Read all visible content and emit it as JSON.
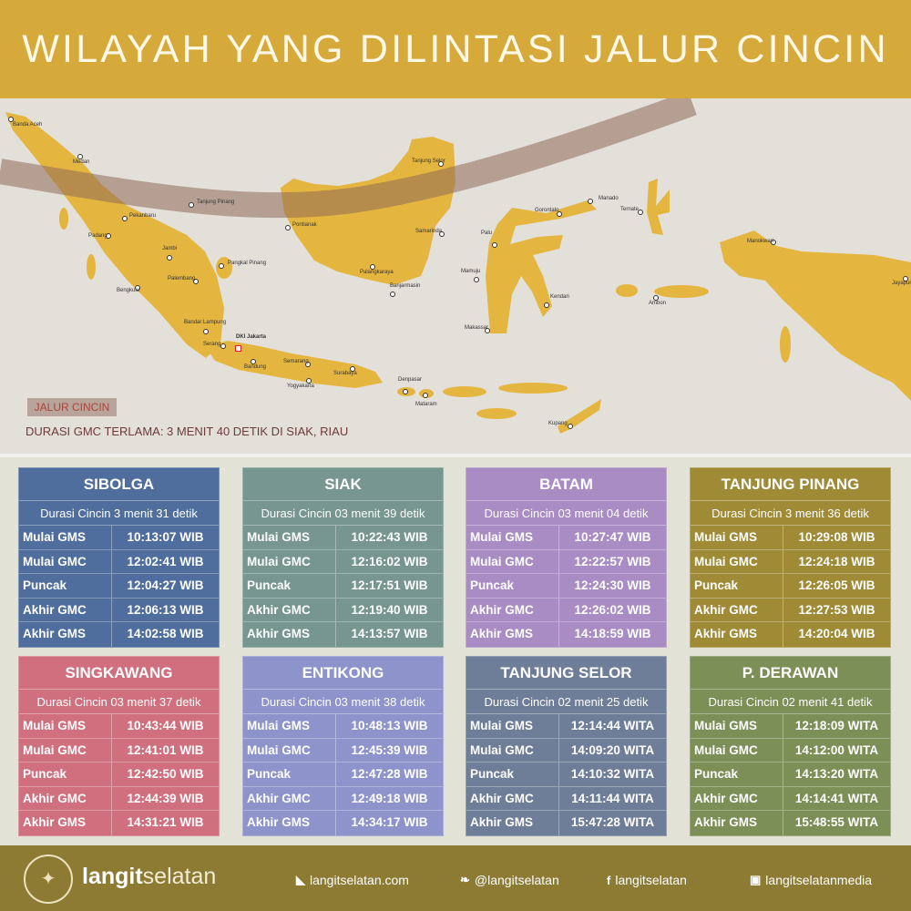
{
  "header": {
    "title": "WILAYAH YANG DILINTASI JALUR CINCIN"
  },
  "map": {
    "colors": {
      "land": "#E5B63F",
      "sea": "#E3DFD9",
      "path": "#8E6A58"
    },
    "legend_label": "JALUR CINCIN",
    "longest_duration": "DURASI GMC TERLAMA: 3 MENIT 40 DETIK DI SIAK, RIAU",
    "capital": "DKI Jakarta",
    "cities": [
      "Banda Aceh",
      "Medan",
      "Tanjung Pinang",
      "Pekanbaru",
      "Padang",
      "Jambi",
      "Pangkal Pinang",
      "Palembang",
      "Bengkulu",
      "Bandar Lampung",
      "Serang",
      "Bandung",
      "Semarang",
      "Yogyakarta",
      "Surabaya",
      "Denpasar",
      "Mataram",
      "Tanjung Selor",
      "Pontianak",
      "Samarinda",
      "Palangkaraya",
      "Banjarmasin",
      "Manado",
      "Gorontalo",
      "Ternate",
      "Palu",
      "Mamuju",
      "Kendari",
      "Makassar",
      "Ambon",
      "Manokwari",
      "Jayapura",
      "Kupang"
    ]
  },
  "locations": [
    {
      "name": "SIBOLGA",
      "duration": "Durasi Cincin 3 menit 31 detik",
      "color": "#4F6E9D",
      "rows": [
        [
          "Mulai GMS",
          "10:13:07 WIB"
        ],
        [
          "Mulai GMC",
          "12:02:41 WIB"
        ],
        [
          "Puncak",
          "12:04:27 WIB"
        ],
        [
          "Akhir GMC",
          "12:06:13  WIB"
        ],
        [
          "Akhir GMS",
          "14:02:58 WIB"
        ]
      ]
    },
    {
      "name": "SIAK",
      "duration": "Durasi Cincin 03 menit 39 detik",
      "color": "#76968F",
      "rows": [
        [
          "Mulai GMS",
          "10:22:43 WIB"
        ],
        [
          "Mulai GMC",
          "12:16:02 WIB"
        ],
        [
          "Puncak",
          "12:17:51 WIB"
        ],
        [
          "Akhir GMC",
          "12:19:40 WIB"
        ],
        [
          "Akhir GMS",
          "14:13:57 WIB"
        ]
      ]
    },
    {
      "name": "BATAM",
      "duration": "Durasi Cincin 03 menit 04 detik",
      "color": "#AA8CC5",
      "rows": [
        [
          "Mulai GMS",
          "10:27:47 WIB"
        ],
        [
          "Mulai GMC",
          "12:22:57 WIB"
        ],
        [
          "Puncak",
          "12:24:30 WIB"
        ],
        [
          "Akhir GMC",
          "12:26:02 WIB"
        ],
        [
          "Akhir GMS",
          "14:18:59 WIB"
        ]
      ]
    },
    {
      "name": "TANJUNG PINANG",
      "duration": "Durasi Cincin 3 menit 36 detik",
      "color": "#9F8A36",
      "rows": [
        [
          "Mulai GMS",
          "10:29:08 WIB"
        ],
        [
          "Mulai GMC",
          "12:24:18 WIB"
        ],
        [
          "Puncak",
          "12:26:05 WIB"
        ],
        [
          "Akhir GMC",
          "12:27:53 WIB"
        ],
        [
          "Akhir GMS",
          "14:20:04 WIB"
        ]
      ]
    },
    {
      "name": "SINGKAWANG",
      "duration": "Durasi Cincin 03 menit 37 detik",
      "color": "#D0707E",
      "rows": [
        [
          "Mulai GMS",
          "10:43:44 WIB"
        ],
        [
          "Mulai GMC",
          "12:41:01 WIB"
        ],
        [
          "Puncak",
          "12:42:50 WIB"
        ],
        [
          "Akhir GMC",
          "12:44:39 WIB"
        ],
        [
          "Akhir GMS",
          "14:31:21 WIB"
        ]
      ]
    },
    {
      "name": "ENTIKONG",
      "duration": "Durasi Cincin 03 menit 38 detik",
      "color": "#8E94CB",
      "rows": [
        [
          "Mulai GMS",
          "10:48:13 WIB"
        ],
        [
          "Mulai GMC",
          "12:45:39 WIB"
        ],
        [
          "Puncak",
          "12:47:28 WIB"
        ],
        [
          "Akhir GMC",
          "12:49:18 WIB"
        ],
        [
          "Akhir GMS",
          "14:34:17 WIB"
        ]
      ]
    },
    {
      "name": "TANJUNG SELOR",
      "duration": "Durasi Cincin 02 menit 25 detik",
      "color": "#6F7E98",
      "rows": [
        [
          "Mulai GMS",
          "12:14:44 WITA"
        ],
        [
          "Mulai GMC",
          "14:09:20 WITA"
        ],
        [
          "Puncak",
          "14:10:32 WITA"
        ],
        [
          "Akhir GMC",
          "14:11:44 WITA"
        ],
        [
          "Akhir GMS",
          "15:47:28 WITA"
        ]
      ]
    },
    {
      "name": "P. DERAWAN",
      "duration": "Durasi Cincin 02 menit 41 detik",
      "color": "#7C8F57",
      "rows": [
        [
          "Mulai GMS",
          "12:18:09 WITA"
        ],
        [
          "Mulai GMC",
          "14:12:00 WITA"
        ],
        [
          "Puncak",
          "14:13:20 WITA"
        ],
        [
          "Akhir GMC",
          "14:14:41 WITA"
        ],
        [
          "Akhir GMS",
          "15:48:55 WITA"
        ]
      ]
    }
  ],
  "footer": {
    "brand_bold": "langit",
    "brand_thin": "selatan",
    "logo_text": "LANGITSELATAN",
    "links": [
      {
        "icon": "rss-icon",
        "glyph": "◣",
        "label": "langitselatan.com"
      },
      {
        "icon": "twitter-icon",
        "glyph": "❧",
        "label": "@langitselatan"
      },
      {
        "icon": "facebook-icon",
        "glyph": "f",
        "label": "langitselatan"
      },
      {
        "icon": "instagram-icon",
        "glyph": "▣",
        "label": "langitselatanmedia"
      }
    ]
  }
}
